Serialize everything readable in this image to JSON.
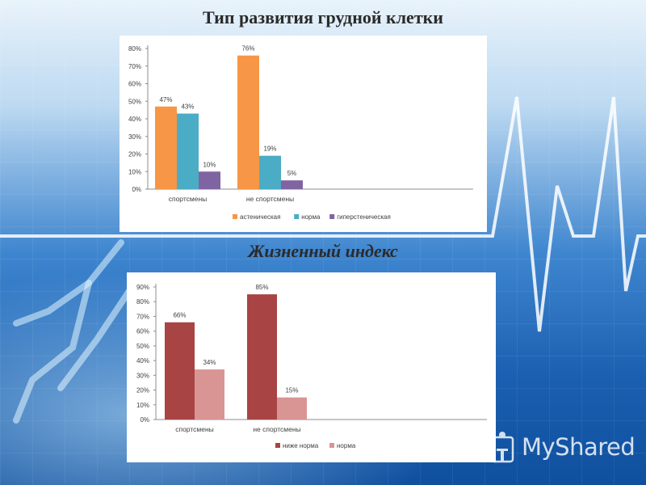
{
  "titles": {
    "chart1": "Тип развития грудной клетки",
    "chart2": "Жизненный индекс"
  },
  "watermark": {
    "text": "MyShared",
    "icon": "lectern-person-icon"
  },
  "colors": {
    "orange": "#f79646",
    "teal": "#4bacc6",
    "purple": "#8064a2",
    "darkred": "#a84443",
    "pink": "#d99594"
  },
  "chart_data": [
    {
      "type": "bar",
      "title": "Тип развития грудной клетки",
      "categories": [
        "спортсмены",
        "не спортсмены"
      ],
      "series": [
        {
          "name": "астеническая",
          "values": [
            47,
            76
          ],
          "color": "#f79646"
        },
        {
          "name": "норма",
          "values": [
            43,
            19
          ],
          "color": "#4bacc6"
        },
        {
          "name": "гиперстеническая",
          "values": [
            10,
            5
          ],
          "color": "#8064a2"
        }
      ],
      "ylim": [
        0,
        80
      ],
      "yticks": [
        0,
        10,
        20,
        30,
        40,
        50,
        60,
        70,
        80
      ],
      "unit": "%",
      "grid": false,
      "legend": "bottom"
    },
    {
      "type": "bar",
      "title": "Жизненный индекс",
      "categories": [
        "спортсмены",
        "не спортсмены"
      ],
      "series": [
        {
          "name": "ниже норма",
          "values": [
            66,
            85
          ],
          "color": "#a84443"
        },
        {
          "name": "норма",
          "values": [
            34,
            15
          ],
          "color": "#d99594"
        }
      ],
      "ylim": [
        0,
        90
      ],
      "yticks": [
        0,
        10,
        20,
        30,
        40,
        50,
        60,
        70,
        80,
        90
      ],
      "unit": "%",
      "grid": false,
      "legend": "bottom"
    }
  ]
}
